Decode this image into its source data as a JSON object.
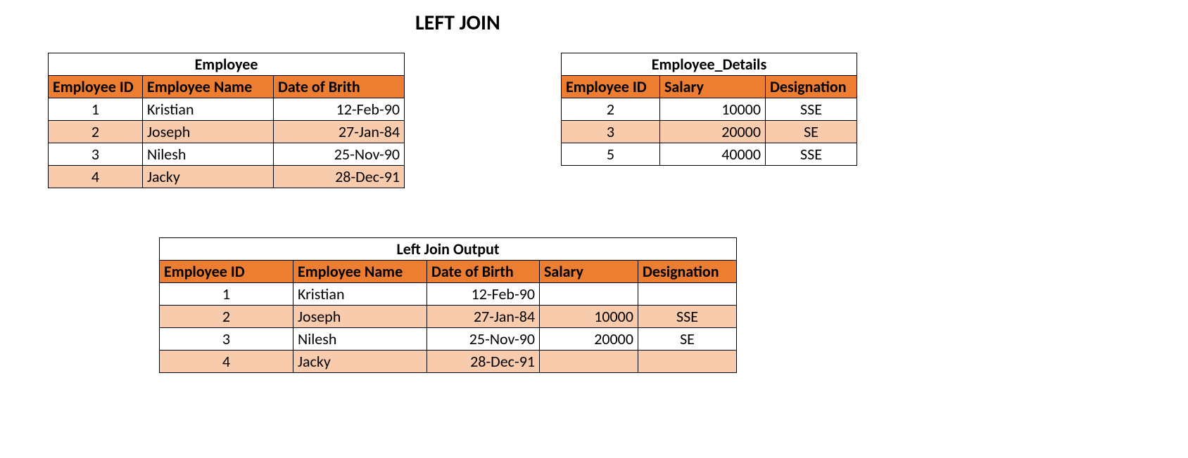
{
  "title": "LEFT JOIN",
  "employee": {
    "caption": "Employee",
    "columns": [
      "Employee ID",
      "Employee Name",
      "Date of Brith"
    ],
    "rows": [
      {
        "id": "1",
        "name": "Kristian",
        "dob": "12-Feb-90"
      },
      {
        "id": "2",
        "name": "Joseph",
        "dob": "27-Jan-84"
      },
      {
        "id": "3",
        "name": "Nilesh",
        "dob": "25-Nov-90"
      },
      {
        "id": "4",
        "name": "Jacky",
        "dob": "28-Dec-91"
      }
    ]
  },
  "details": {
    "caption": "Employee_Details",
    "columns": [
      "Employee ID",
      "Salary",
      "Designation"
    ],
    "rows": [
      {
        "id": "2",
        "salary": "10000",
        "desig": "SSE"
      },
      {
        "id": "3",
        "salary": "20000",
        "desig": "SE"
      },
      {
        "id": "5",
        "salary": "40000",
        "desig": "SSE"
      }
    ]
  },
  "output": {
    "caption": "Left Join Output",
    "columns": [
      "Employee ID",
      "Employee Name",
      "Date of Birth",
      "Salary",
      "Designation"
    ],
    "rows": [
      {
        "id": "1",
        "name": "Kristian",
        "dob": "12-Feb-90",
        "salary": "",
        "desig": ""
      },
      {
        "id": "2",
        "name": "Joseph",
        "dob": "27-Jan-84",
        "salary": "10000",
        "desig": "SSE"
      },
      {
        "id": "3",
        "name": "Nilesh",
        "dob": "25-Nov-90",
        "salary": "20000",
        "desig": "SE"
      },
      {
        "id": "4",
        "name": "Jacky",
        "dob": "28-Dec-91",
        "salary": "",
        "desig": ""
      }
    ]
  },
  "colors": {
    "header_bg": "#ed7d31",
    "alt_row_bg": "#f8cbad",
    "border": "#000000",
    "text": "#000000",
    "background": "#ffffff"
  }
}
